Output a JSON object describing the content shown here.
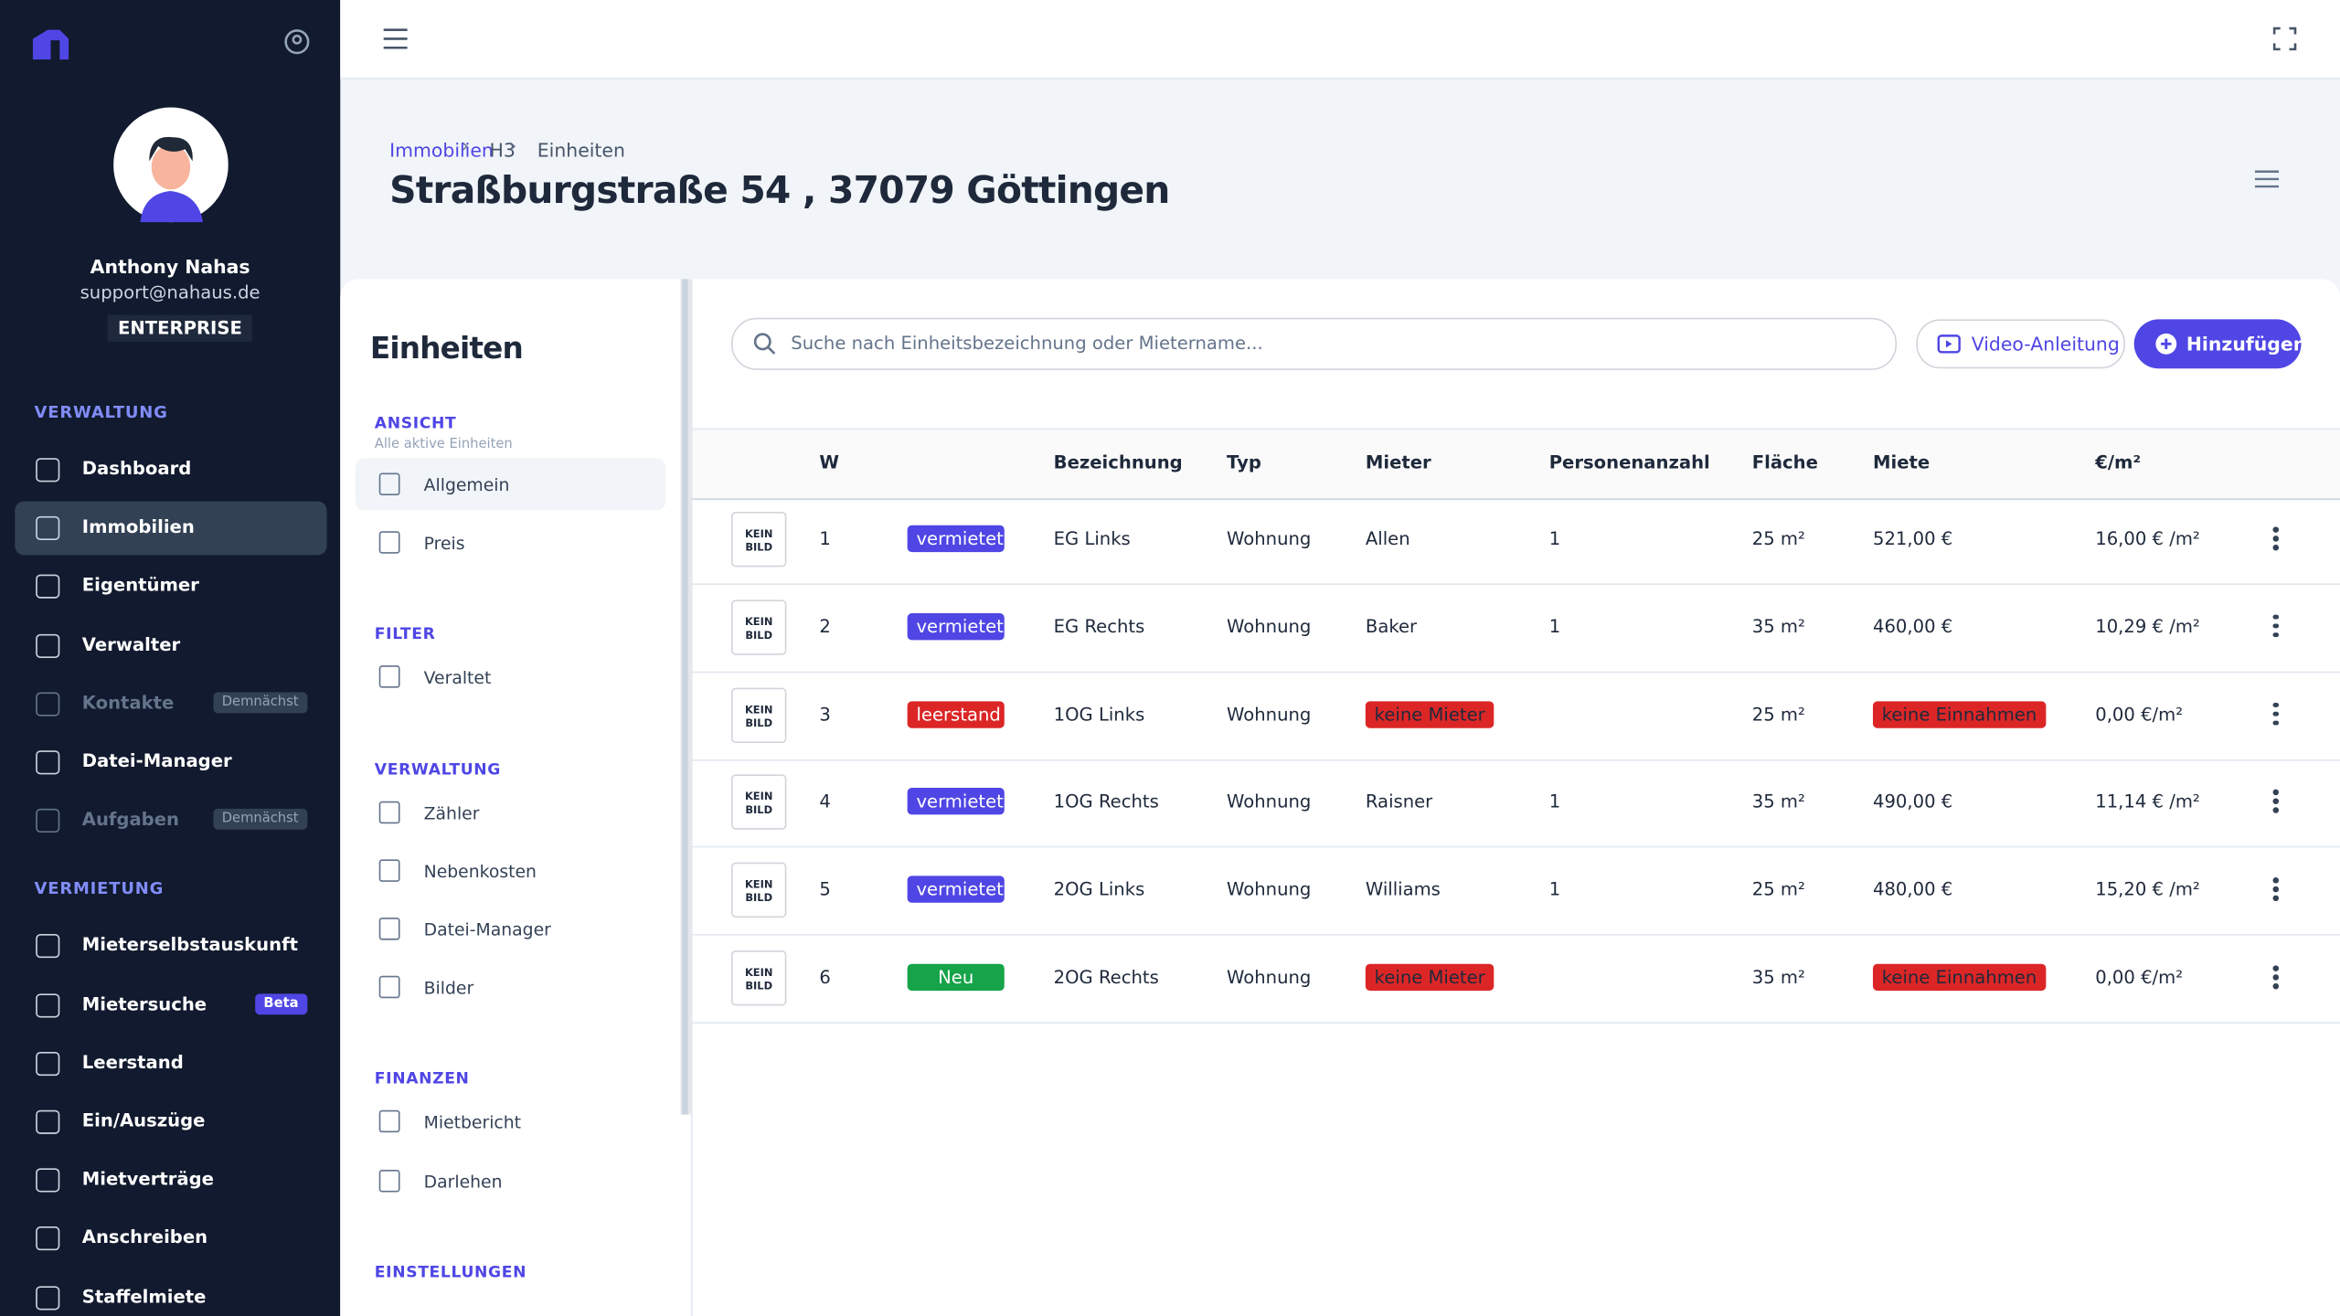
{
  "sidebar": {
    "user": {
      "name": "Anthony Nahas",
      "email": "support@nahaus.de",
      "plan": "ENTERPRISE"
    },
    "sections": [
      {
        "title": "VERWALTUNG",
        "items": [
          {
            "label": "Dashboard"
          },
          {
            "label": "Immobilien",
            "active": true
          },
          {
            "label": "Eigentümer"
          },
          {
            "label": "Verwalter"
          },
          {
            "label": "Kontakte",
            "badge": "Demnächst",
            "disabled": true
          },
          {
            "label": "Datei-Manager"
          },
          {
            "label": "Aufgaben",
            "badge": "Demnächst",
            "disabled": true
          }
        ]
      },
      {
        "title": "VERMIETUNG",
        "items": [
          {
            "label": "Mieterselbstauskunft"
          },
          {
            "label": "Mietersuche",
            "badge": "Beta"
          },
          {
            "label": "Leerstand"
          },
          {
            "label": "Ein/Auszüge"
          },
          {
            "label": "Mietverträge"
          },
          {
            "label": "Anschreiben"
          },
          {
            "label": "Staffelmiete"
          }
        ]
      }
    ]
  },
  "breadcrumb": [
    "Immobilien",
    "H3",
    "Einheiten"
  ],
  "title": "Straßburgstraße 54 , 37079 Göttingen",
  "subnav": {
    "title": "Einheiten",
    "groups": [
      {
        "title": "ANSICHT",
        "subtitle": "Alle aktive Einheiten",
        "items": [
          {
            "label": "Allgemein",
            "active": true
          },
          {
            "label": "Preis"
          }
        ]
      },
      {
        "title": "FILTER",
        "items": [
          {
            "label": "Veraltet"
          }
        ]
      },
      {
        "title": "VERWALTUNG",
        "items": [
          {
            "label": "Zähler"
          },
          {
            "label": "Nebenkosten"
          },
          {
            "label": "Datei-Manager"
          },
          {
            "label": "Bilder"
          }
        ]
      },
      {
        "title": "FINANZEN",
        "items": [
          {
            "label": "Mietbericht"
          },
          {
            "label": "Darlehen"
          }
        ]
      },
      {
        "title": "EINSTELLUNGEN",
        "items": []
      }
    ]
  },
  "toolbar": {
    "search_placeholder": "Suche nach Einheitsbezeichnung oder Mietername...",
    "video": "Video-Anleitung",
    "add": "Hinzufügen"
  },
  "table": {
    "image_placeholder": "KEIN BILD",
    "columns": [
      "W",
      "Bezeichnung",
      "Typ",
      "Mieter",
      "Personenanzahl",
      "Fläche",
      "Miete",
      "€/m²"
    ],
    "rows": [
      {
        "w": "1",
        "status": {
          "text": "vermietet",
          "color": "#4f46e5"
        },
        "name": "EG Links",
        "type": "Wohnung",
        "tenant": {
          "text": "Allen"
        },
        "persons": "1",
        "area": "25 m²",
        "rent": {
          "text": "521,00 €"
        },
        "per_m2": "16,00 € /m²"
      },
      {
        "w": "2",
        "status": {
          "text": "vermietet",
          "color": "#4f46e5"
        },
        "name": "EG Rechts",
        "type": "Wohnung",
        "tenant": {
          "text": "Baker"
        },
        "persons": "1",
        "area": "35 m²",
        "rent": {
          "text": "460,00 €"
        },
        "per_m2": "10,29 € /m²"
      },
      {
        "w": "3",
        "status": {
          "text": "leerstand",
          "color": "#dc2626"
        },
        "name": "1OG Links",
        "type": "Wohnung",
        "tenant": {
          "text": "keine Mieter",
          "badge": true
        },
        "persons": null,
        "area": "25 m²",
        "rent": {
          "text": "keine Einnahmen",
          "badge": true
        },
        "per_m2": "0,00 €/m²"
      },
      {
        "w": "4",
        "status": {
          "text": "vermietet",
          "color": "#4f46e5"
        },
        "name": "1OG Rechts",
        "type": "Wohnung",
        "tenant": {
          "text": "Raisner"
        },
        "persons": "1",
        "area": "35 m²",
        "rent": {
          "text": "490,00 €"
        },
        "per_m2": "11,14 € /m²"
      },
      {
        "w": "5",
        "status": {
          "text": "vermietet",
          "color": "#4f46e5"
        },
        "name": "2OG Links",
        "type": "Wohnung",
        "tenant": {
          "text": "Williams"
        },
        "persons": "1",
        "area": "25 m²",
        "rent": {
          "text": "480,00 €"
        },
        "per_m2": "15,20 € /m²"
      },
      {
        "w": "6",
        "status": {
          "text": "Neu",
          "color": "#16a34a"
        },
        "name": "2OG Rechts",
        "type": "Wohnung",
        "tenant": {
          "text": "keine Mieter",
          "badge": true
        },
        "persons": null,
        "area": "35 m²",
        "rent": {
          "text": "keine Einnahmen",
          "badge": true
        },
        "per_m2": "0,00 €/m²"
      }
    ]
  }
}
